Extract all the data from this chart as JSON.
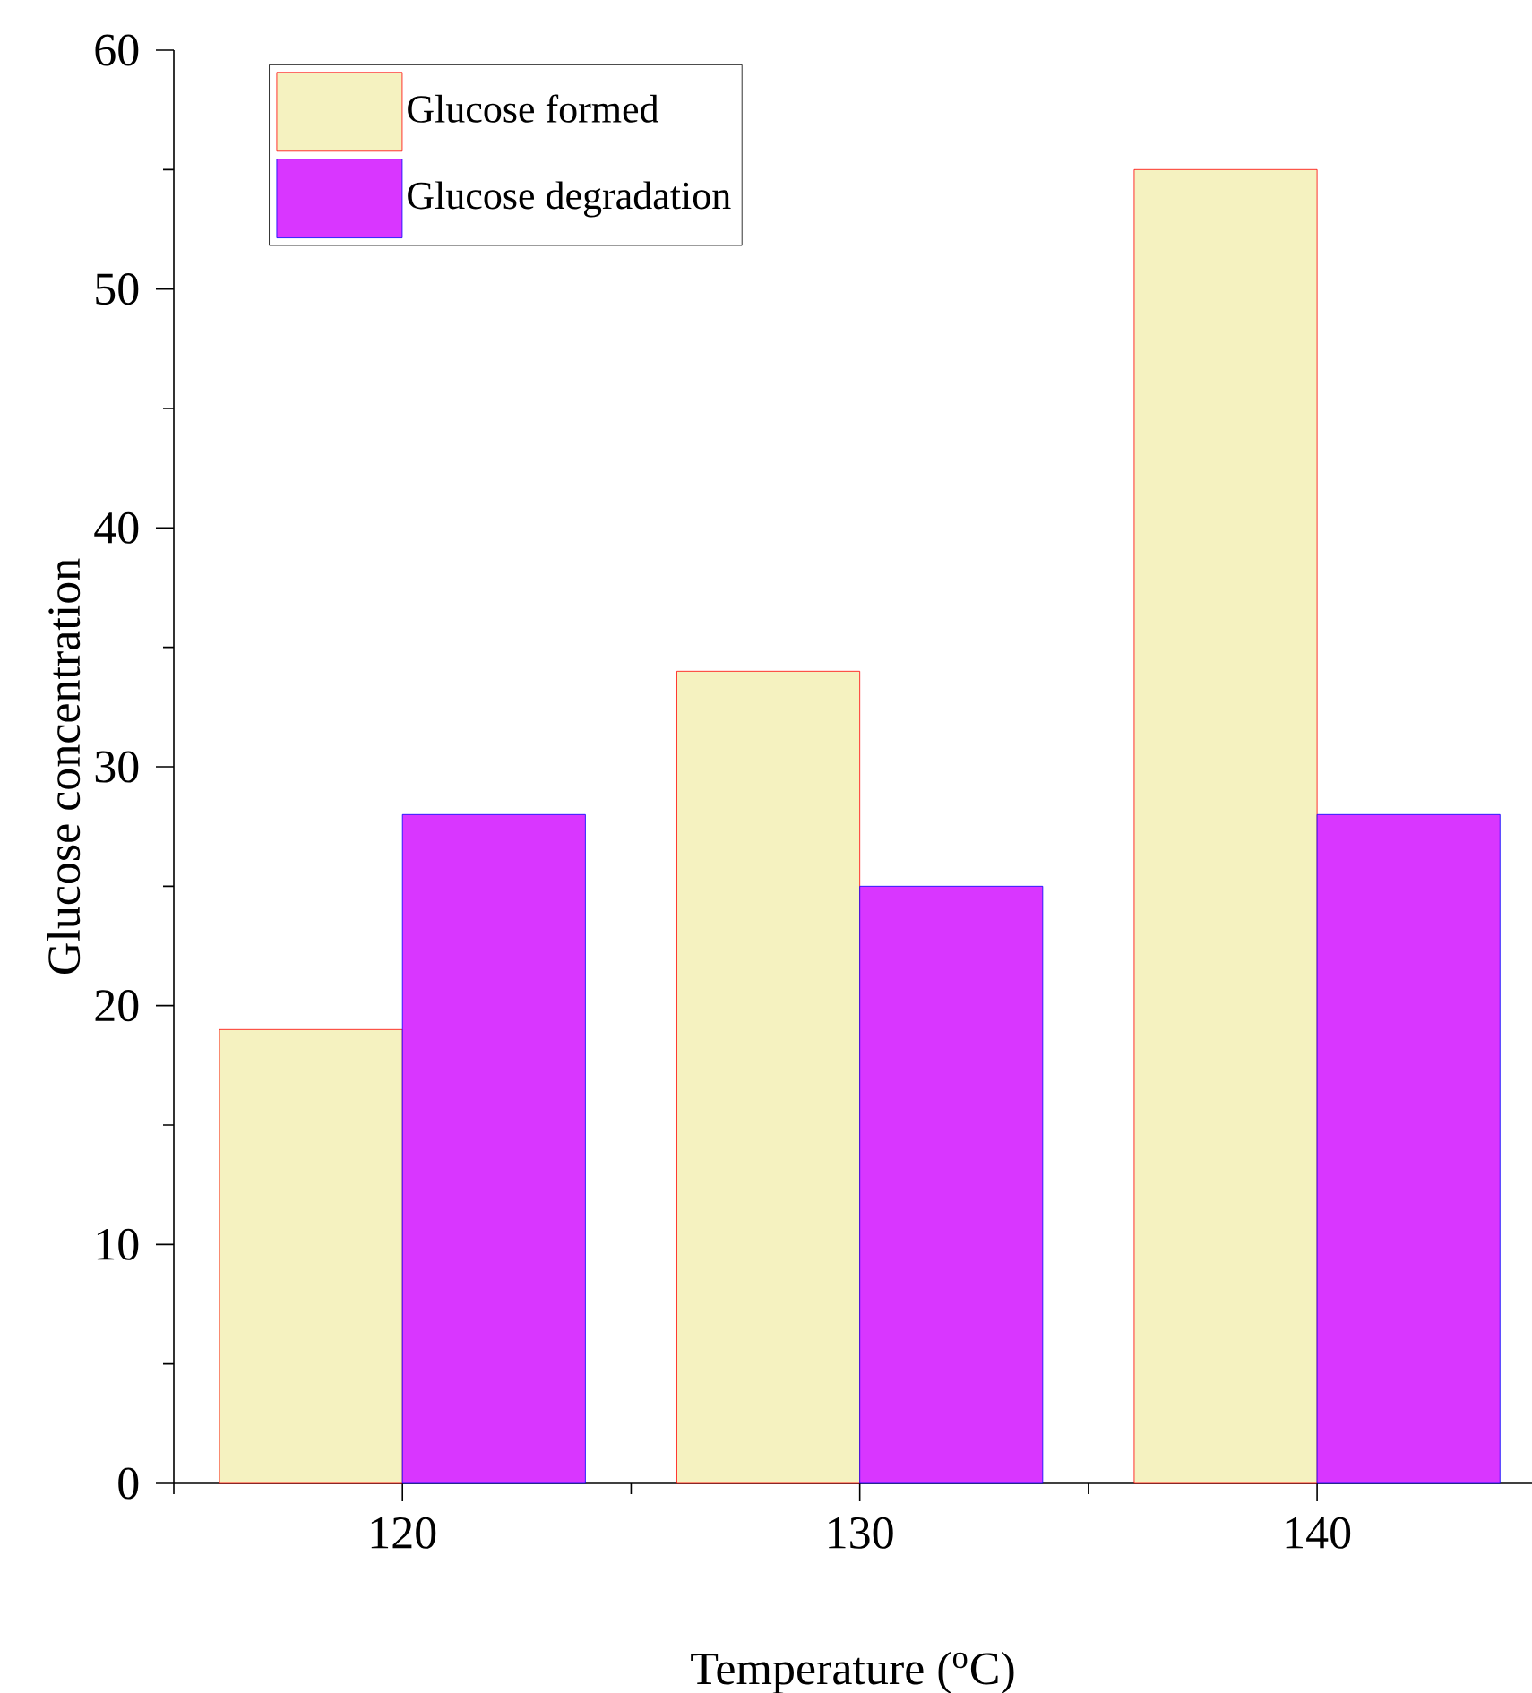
{
  "chart_data": {
    "type": "bar",
    "xlabel": "Temperature ($^{o}$C)",
    "ylabel": "Glucose concentration",
    "categories": [
      "120",
      "130",
      "140"
    ],
    "series": [
      {
        "name": "Glucose formed",
        "color": "#f5f2c0",
        "values": [
          19,
          34,
          55
        ]
      },
      {
        "name": "Glucose degradation",
        "color": "#d936ff",
        "values": [
          28,
          25,
          28
        ]
      }
    ],
    "ylim": [
      0,
      60
    ],
    "yticks": [
      0,
      10,
      20,
      30,
      40,
      50,
      60
    ],
    "legend": "top left"
  }
}
